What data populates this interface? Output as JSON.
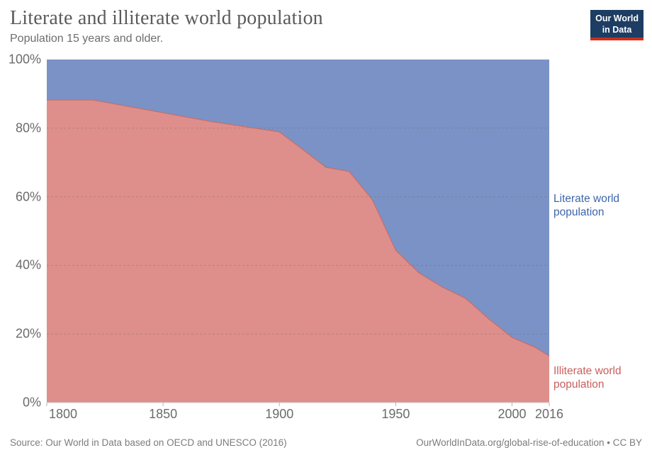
{
  "header": {
    "title": "Literate and illiterate world population",
    "subtitle": "Population 15 years and older."
  },
  "logo": {
    "text": "Our World\nin Data"
  },
  "series_labels": {
    "literate": "Literate world\npopulation",
    "illiterate": "Illiterate world\npopulation"
  },
  "footer": {
    "source": "Source: Our World in Data based on OECD and UNESCO (2016)",
    "link": "OurWorldInData.org/global-rise-of-education • CC BY"
  },
  "chart_data": {
    "type": "area",
    "stacked": true,
    "title": "Literate and illiterate world population",
    "xlabel": "",
    "ylabel": "",
    "x_range": [
      1800,
      2016
    ],
    "y_range": [
      0,
      100
    ],
    "grid": "dashed horizontal at 20/40/60/80%",
    "legend_position": "right-edge labels",
    "years": [
      1800,
      1820,
      1870,
      1900,
      1910,
      1920,
      1930,
      1940,
      1950,
      1960,
      1970,
      1980,
      1990,
      2000,
      2010,
      2016
    ],
    "series": [
      {
        "name": "Illiterate world population",
        "color": "#de8f8b",
        "edge_color": "#c4706c",
        "values": [
          88.2,
          88.2,
          82.0,
          78.9,
          73.8,
          68.6,
          67.4,
          59.1,
          44.4,
          37.8,
          33.7,
          30.4,
          24.4,
          19.0,
          16.1,
          13.6
        ]
      },
      {
        "name": "Literate world population",
        "color": "#7b92c6",
        "edge_color": "#7b92c6",
        "values": [
          11.8,
          11.8,
          18.0,
          21.1,
          26.2,
          31.4,
          32.6,
          40.9,
          55.6,
          62.2,
          66.3,
          69.6,
          75.6,
          81.0,
          83.9,
          86.4
        ]
      }
    ],
    "gridline_values": [
      20,
      40,
      60,
      80
    ],
    "y_ticks": [
      {
        "v": 100,
        "label": "100%"
      },
      {
        "v": 80,
        "label": "80%"
      },
      {
        "v": 60,
        "label": "60%"
      },
      {
        "v": 40,
        "label": "40%"
      },
      {
        "v": 20,
        "label": "20%"
      },
      {
        "v": 0,
        "label": "0%"
      }
    ],
    "x_ticks": [
      {
        "v": 1800,
        "label": "1800",
        "align": "left"
      },
      {
        "v": 1850,
        "label": "1850",
        "align": "center"
      },
      {
        "v": 1900,
        "label": "1900",
        "align": "center"
      },
      {
        "v": 1950,
        "label": "1950",
        "align": "center"
      },
      {
        "v": 2000,
        "label": "2000",
        "align": "center"
      },
      {
        "v": 2016,
        "label": "2016",
        "align": "center"
      }
    ]
  }
}
